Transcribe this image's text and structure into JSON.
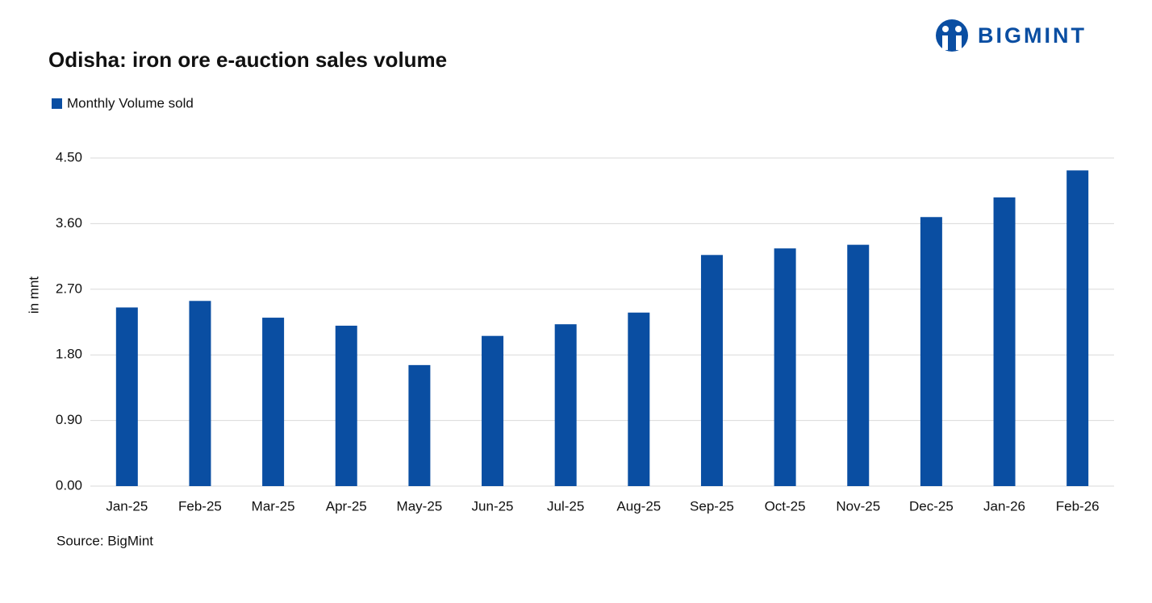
{
  "logo": "BIGMINT",
  "chart_data": {
    "type": "bar",
    "title": "Odisha: iron ore e-auction sales volume",
    "y_label": "in mnt",
    "source": "Source: BigMint",
    "categories": [
      "Jan-25",
      "Feb-25",
      "Mar-25",
      "Apr-25",
      "May-25",
      "Jun-25",
      "Jul-25",
      "Aug-25",
      "Sep-25",
      "Oct-25",
      "Nov-25",
      "Dec-25",
      "Jan-26",
      "Feb-26"
    ],
    "series": [
      {
        "name": "Monthly Volume sold",
        "color": "#0a4ea2",
        "values": [
          2.45,
          2.54,
          2.31,
          2.2,
          1.66,
          2.06,
          2.22,
          2.38,
          3.17,
          3.26,
          3.31,
          3.69,
          3.96,
          4.33
        ]
      }
    ],
    "ylim": [
      0,
      4.5
    ],
    "yticks": [
      {
        "value": 0,
        "label": "0.00"
      },
      {
        "value": 0.9,
        "label": "0.90"
      },
      {
        "value": 1.8,
        "label": "1.80"
      },
      {
        "value": 2.7,
        "label": "2.70"
      },
      {
        "value": 3.6,
        "label": "3.60"
      },
      {
        "value": 4.5,
        "label": "4.50"
      }
    ],
    "grid": true
  }
}
